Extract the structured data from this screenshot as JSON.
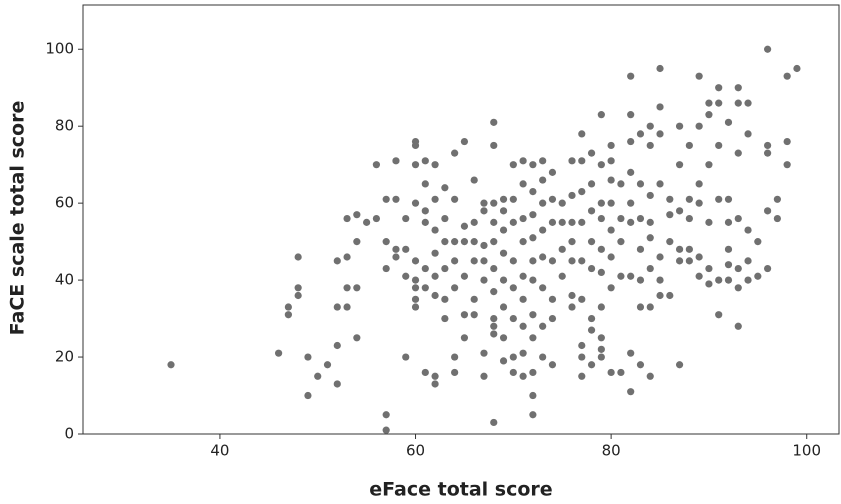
{
  "chart_data": {
    "type": "scatter",
    "x_label": "eFace total score",
    "y_label": "FaCE scale total score",
    "color": "#707070",
    "xlim": [
      26,
      103.3
    ],
    "ylim": [
      0,
      111.5
    ],
    "xticks": [
      40,
      60,
      80,
      100
    ],
    "yticks": [
      0,
      20,
      40,
      60,
      80,
      100
    ],
    "x": [
      35,
      46,
      47,
      47,
      48,
      48,
      48,
      49,
      49,
      50,
      51,
      52,
      52,
      52,
      52,
      53,
      53,
      53,
      53,
      54,
      54,
      54,
      54,
      55,
      56,
      56,
      57,
      57,
      57,
      57,
      57,
      58,
      58,
      58,
      58,
      59,
      59,
      59,
      59,
      60,
      60,
      60,
      60,
      60,
      60,
      60,
      60,
      60,
      61,
      61,
      61,
      61,
      61,
      61,
      61,
      62,
      62,
      62,
      62,
      62,
      62,
      62,
      62,
      63,
      63,
      63,
      63,
      63,
      63,
      64,
      64,
      64,
      64,
      64,
      64,
      64,
      65,
      65,
      65,
      65,
      65,
      65,
      66,
      66,
      66,
      66,
      66,
      66,
      67,
      67,
      67,
      67,
      67,
      67,
      67,
      68,
      68,
      68,
      68,
      68,
      68,
      68,
      68,
      68,
      68,
      68,
      69,
      69,
      69,
      69,
      69,
      69,
      69,
      69,
      70,
      70,
      70,
      70,
      70,
      70,
      70,
      70,
      71,
      71,
      71,
      71,
      71,
      71,
      71,
      71,
      71,
      72,
      72,
      72,
      72,
      72,
      72,
      72,
      72,
      72,
      72,
      72,
      73,
      73,
      73,
      73,
      73,
      73,
      73,
      73,
      74,
      74,
      74,
      74,
      74,
      74,
      74,
      75,
      75,
      75,
      75,
      76,
      76,
      76,
      76,
      76,
      76,
      76,
      77,
      77,
      77,
      77,
      77,
      77,
      77,
      77,
      77,
      78,
      78,
      78,
      78,
      78,
      78,
      78,
      78,
      79,
      79,
      79,
      79,
      79,
      79,
      79,
      79,
      79,
      79,
      80,
      80,
      80,
      80,
      80,
      80,
      80,
      80,
      81,
      81,
      81,
      81,
      81,
      82,
      82,
      82,
      82,
      82,
      82,
      82,
      82,
      82,
      83,
      83,
      83,
      83,
      83,
      83,
      83,
      84,
      84,
      84,
      84,
      84,
      84,
      84,
      84,
      85,
      85,
      85,
      85,
      85,
      85,
      85,
      86,
      86,
      86,
      86,
      87,
      87,
      87,
      87,
      87,
      87,
      88,
      88,
      88,
      88,
      88,
      89,
      89,
      89,
      89,
      89,
      89,
      90,
      90,
      90,
      90,
      90,
      90,
      91,
      91,
      91,
      91,
      91,
      91,
      92,
      92,
      92,
      92,
      92,
      92,
      93,
      93,
      93,
      93,
      93,
      93,
      93,
      94,
      94,
      94,
      94,
      94,
      95,
      95,
      96,
      96,
      96,
      96,
      96,
      97,
      97,
      98,
      98,
      98,
      99
    ],
    "values": [
      18,
      21,
      33,
      31,
      46,
      38,
      36,
      20,
      10,
      15,
      18,
      13,
      23,
      33,
      45,
      56,
      46,
      38,
      33,
      25,
      38,
      50,
      57,
      55,
      70,
      56,
      61,
      50,
      43,
      5,
      1,
      71,
      61,
      48,
      46,
      56,
      48,
      41,
      20,
      76,
      75,
      70,
      60,
      45,
      38,
      35,
      40,
      33,
      71,
      65,
      58,
      55,
      43,
      38,
      16,
      70,
      61,
      53,
      47,
      41,
      36,
      13,
      15,
      64,
      56,
      50,
      43,
      35,
      30,
      73,
      61,
      50,
      45,
      38,
      20,
      16,
      76,
      54,
      50,
      41,
      31,
      25,
      66,
      55,
      50,
      45,
      35,
      31,
      60,
      58,
      49,
      45,
      40,
      21,
      15,
      81,
      75,
      60,
      55,
      50,
      43,
      37,
      30,
      26,
      28,
      3,
      61,
      58,
      53,
      47,
      40,
      33,
      25,
      19,
      70,
      61,
      55,
      45,
      38,
      30,
      20,
      16,
      71,
      65,
      56,
      50,
      41,
      35,
      28,
      21,
      15,
      70,
      63,
      57,
      51,
      45,
      40,
      31,
      25,
      16,
      10,
      5,
      71,
      66,
      60,
      53,
      46,
      38,
      28,
      20,
      68,
      61,
      55,
      45,
      35,
      30,
      18,
      60,
      55,
      48,
      41,
      71,
      62,
      55,
      50,
      45,
      36,
      33,
      78,
      71,
      63,
      55,
      45,
      35,
      23,
      20,
      15,
      73,
      65,
      58,
      50,
      43,
      30,
      27,
      18,
      83,
      70,
      60,
      56,
      48,
      42,
      33,
      25,
      22,
      20,
      75,
      71,
      66,
      60,
      53,
      46,
      38,
      16,
      65,
      56,
      50,
      41,
      16,
      93,
      83,
      76,
      68,
      60,
      55,
      41,
      21,
      11,
      78,
      65,
      56,
      48,
      40,
      33,
      18,
      80,
      75,
      62,
      55,
      51,
      43,
      33,
      15,
      95,
      85,
      78,
      65,
      46,
      40,
      36,
      61,
      57,
      50,
      36,
      80,
      70,
      58,
      48,
      45,
      18,
      75,
      61,
      56,
      48,
      45,
      93,
      80,
      65,
      60,
      46,
      41,
      86,
      83,
      70,
      55,
      43,
      39,
      90,
      86,
      75,
      61,
      40,
      31,
      81,
      61,
      55,
      48,
      44,
      40,
      90,
      86,
      73,
      56,
      43,
      38,
      28,
      86,
      78,
      53,
      45,
      40,
      50,
      41,
      100,
      75,
      73,
      58,
      43,
      61,
      56,
      93,
      76,
      70,
      95
    ]
  }
}
